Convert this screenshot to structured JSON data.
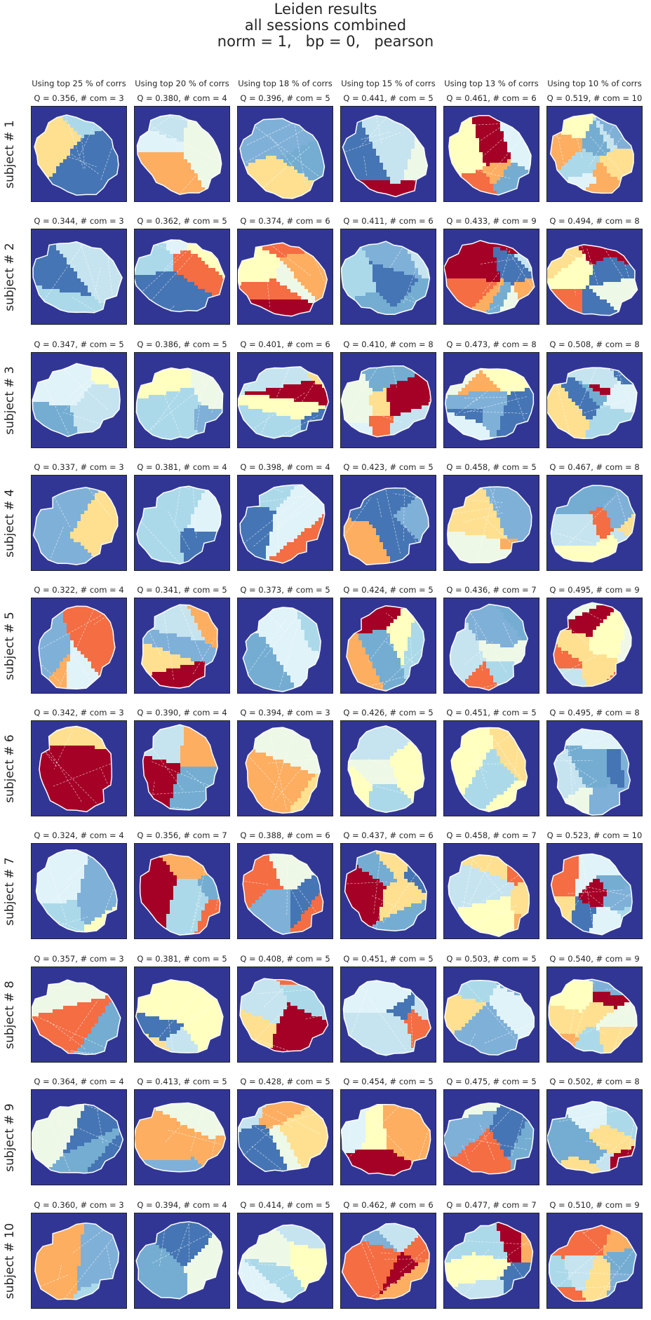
{
  "title_lines": [
    "Leiden results",
    "all sessions combined",
    "norm = 1,   bp = 0,   pearson"
  ],
  "colors": {
    "background": "#313695",
    "palette": [
      "#4575b4",
      "#74add1",
      "#abd9e9",
      "#e0f3f8",
      "#ffffbf",
      "#fee090",
      "#fdae61",
      "#f46d43",
      "#a50026",
      "#7fb0d8",
      "#c6e4ef",
      "#eef8e6"
    ]
  },
  "chart_data": {
    "type": "heatmap",
    "column_headers": [
      "Using top 25 % of corrs",
      "Using top 20 % of corrs",
      "Using top 18 % of corrs",
      "Using top 15 % of corrs",
      "Using top 13 % of corrs",
      "Using top 10 % of corrs"
    ],
    "row_labels": [
      "subject # 1",
      "subject # 2",
      "subject # 3",
      "subject # 4",
      "subject # 5",
      "subject # 6",
      "subject # 7",
      "subject # 8",
      "subject # 9",
      "subject # 10"
    ],
    "panel_titles": [
      [
        "Q = 0.356,  # com = 3",
        "Q = 0.380,  # com = 4",
        "Q = 0.396,  # com = 5",
        "Q = 0.441,  # com = 5",
        "Q = 0.461,  # com = 6",
        "Q = 0.519,  # com = 10"
      ],
      [
        "Q = 0.344,  # com = 3",
        "Q = 0.362,  # com = 5",
        "Q = 0.374,  # com = 6",
        "Q = 0.411,  # com = 6",
        "Q = 0.433,  # com = 9",
        "Q = 0.494,  # com = 8"
      ],
      [
        "Q = 0.347,  # com = 5",
        "Q = 0.386,  # com = 5",
        "Q = 0.401,  # com = 6",
        "Q = 0.410,  # com = 8",
        "Q = 0.473,  # com = 8",
        "Q = 0.508,  # com = 8"
      ],
      [
        "Q = 0.337,  # com = 3",
        "Q = 0.381,  # com = 4",
        "Q = 0.398,  # com = 4",
        "Q = 0.423,  # com = 5",
        "Q = 0.458,  # com = 5",
        "Q = 0.467,  # com = 8"
      ],
      [
        "Q = 0.322,  # com = 4",
        "Q = 0.341,  # com = 5",
        "Q = 0.373,  # com = 5",
        "Q = 0.424,  # com = 5",
        "Q = 0.436,  # com = 7",
        "Q = 0.495,  # com = 9"
      ],
      [
        "Q = 0.342,  # com = 3",
        "Q = 0.390,  # com = 4",
        "Q = 0.394,  # com = 3",
        "Q = 0.426,  # com = 5",
        "Q = 0.451,  # com = 5",
        "Q = 0.495,  # com = 8"
      ],
      [
        "Q = 0.324,  # com = 4",
        "Q = 0.356,  # com = 7",
        "Q = 0.388,  # com = 6",
        "Q = 0.437,  # com = 6",
        "Q = 0.458,  # com = 7",
        "Q = 0.523,  # com = 10"
      ],
      [
        "Q = 0.357,  # com = 3",
        "Q = 0.381,  # com = 5",
        "Q = 0.408,  # com = 5",
        "Q = 0.451,  # com = 5",
        "Q = 0.503,  # com = 5",
        "Q = 0.540,  # com = 9"
      ],
      [
        "Q = 0.364,  # com = 4",
        "Q = 0.413,  # com = 5",
        "Q = 0.428,  # com = 5",
        "Q = 0.454,  # com = 5",
        "Q = 0.475,  # com = 5",
        "Q = 0.502,  # com = 8"
      ],
      [
        "Q = 0.360,  # com = 3",
        "Q = 0.394,  # com = 4",
        "Q = 0.414,  # com = 5",
        "Q = 0.462,  # com = 6",
        "Q = 0.477,  # com = 7",
        "Q = 0.510,  # com = 9"
      ]
    ],
    "num_communities": [
      [
        3,
        4,
        5,
        5,
        6,
        10
      ],
      [
        3,
        5,
        6,
        6,
        9,
        8
      ],
      [
        5,
        5,
        6,
        8,
        8,
        8
      ],
      [
        3,
        4,
        4,
        5,
        5,
        8
      ],
      [
        4,
        5,
        5,
        5,
        7,
        9
      ],
      [
        3,
        4,
        3,
        5,
        5,
        8
      ],
      [
        4,
        7,
        6,
        6,
        7,
        10
      ],
      [
        3,
        5,
        5,
        5,
        5,
        9
      ],
      [
        4,
        5,
        5,
        5,
        5,
        8
      ],
      [
        3,
        4,
        5,
        6,
        7,
        9
      ]
    ],
    "modularity_Q": [
      [
        0.356,
        0.38,
        0.396,
        0.441,
        0.461,
        0.519
      ],
      [
        0.344,
        0.362,
        0.374,
        0.411,
        0.433,
        0.494
      ],
      [
        0.347,
        0.386,
        0.401,
        0.41,
        0.473,
        0.508
      ],
      [
        0.337,
        0.381,
        0.398,
        0.423,
        0.458,
        0.467
      ],
      [
        0.322,
        0.341,
        0.373,
        0.424,
        0.436,
        0.495
      ],
      [
        0.342,
        0.39,
        0.394,
        0.426,
        0.451,
        0.495
      ],
      [
        0.324,
        0.356,
        0.388,
        0.437,
        0.458,
        0.523
      ],
      [
        0.357,
        0.381,
        0.408,
        0.451,
        0.503,
        0.54
      ],
      [
        0.364,
        0.413,
        0.428,
        0.454,
        0.475,
        0.502
      ],
      [
        0.36,
        0.394,
        0.414,
        0.462,
        0.477,
        0.51
      ]
    ]
  }
}
